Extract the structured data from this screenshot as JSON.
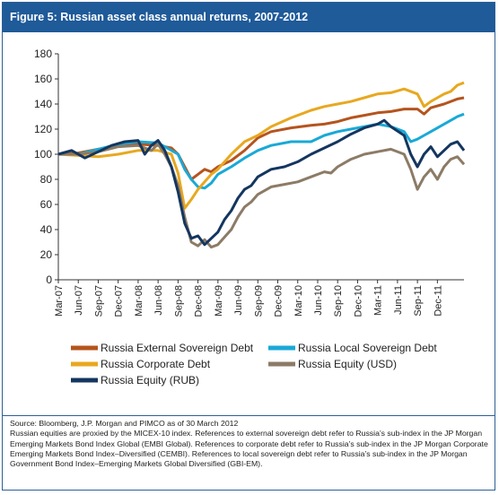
{
  "figure": {
    "title": "Figure 5: Russian asset class annual returns, 2007-2012"
  },
  "notes": {
    "source": "Source: Bloomberg, J.P. Morgan and PIMCO as of 30 March 2012",
    "body": "Russian equities are proxied by the MICEX-10 index. References to external sovereign debt refer to Russia’s sub-index in the JP Morgan Emerging Markets Bond Index Global (EMBI Global). References to corporate debt refer to Russia’s sub-index in the JP Morgan Corporate Emerging Markets Bond Index–Diversified (CEMBI). References to local sovereign debt refer to Russia’s sub-index in the JP Morgan Government Bond Index–Emerging Markets Global Diversified (GBI-EM)."
  },
  "chart_data": {
    "type": "line",
    "title": "Figure 5: Russian asset class annual returns, 2007-2012",
    "xlabel": "",
    "ylabel": "",
    "ylim": [
      0,
      180
    ],
    "yticks": [
      0,
      20,
      40,
      60,
      80,
      100,
      120,
      140,
      160,
      180
    ],
    "grid": false,
    "legend_position": "bottom",
    "x_tick_labels": [
      "Mar-07",
      "Jun-07",
      "Sep-07",
      "Dec-07",
      "Mar-08",
      "Jun-08",
      "Sep-08",
      "Dec-08",
      "Mar-09",
      "Jun-09",
      "Sep-09",
      "Dec-09",
      "Mar-10",
      "Jun-10",
      "Sep-10",
      "Dec-10",
      "Mar-11",
      "Jun-11",
      "Sep-11",
      "Dec-11"
    ],
    "x_range_months": [
      0,
      61
    ],
    "series": [
      {
        "name": "Russia External Sovereign Debt",
        "color": "#b5541e",
        "points": [
          [
            0,
            100
          ],
          [
            3,
            101
          ],
          [
            6,
            104
          ],
          [
            9,
            107
          ],
          [
            12,
            108
          ],
          [
            15,
            107
          ],
          [
            17,
            105
          ],
          [
            18,
            100
          ],
          [
            19,
            90
          ],
          [
            20,
            80
          ],
          [
            21,
            84
          ],
          [
            22,
            88
          ],
          [
            23,
            86
          ],
          [
            24,
            90
          ],
          [
            26,
            95
          ],
          [
            28,
            103
          ],
          [
            30,
            113
          ],
          [
            32,
            118
          ],
          [
            35,
            121
          ],
          [
            38,
            123
          ],
          [
            40,
            124
          ],
          [
            42,
            126
          ],
          [
            44,
            129
          ],
          [
            46,
            131
          ],
          [
            48,
            133
          ],
          [
            50,
            134
          ],
          [
            52,
            136
          ],
          [
            54,
            136
          ],
          [
            55,
            132
          ],
          [
            56,
            137
          ],
          [
            58,
            140
          ],
          [
            60,
            144
          ],
          [
            61,
            145
          ]
        ]
      },
      {
        "name": "Russia Local Sovereign Debt",
        "color": "#1aa9d6",
        "points": [
          [
            0,
            100
          ],
          [
            3,
            100
          ],
          [
            6,
            104
          ],
          [
            9,
            108
          ],
          [
            12,
            110
          ],
          [
            15,
            109
          ],
          [
            16,
            106
          ],
          [
            18,
            100
          ],
          [
            19,
            88
          ],
          [
            20,
            80
          ],
          [
            21,
            74
          ],
          [
            22,
            73
          ],
          [
            23,
            77
          ],
          [
            24,
            84
          ],
          [
            26,
            90
          ],
          [
            28,
            97
          ],
          [
            30,
            103
          ],
          [
            32,
            107
          ],
          [
            35,
            110
          ],
          [
            38,
            110
          ],
          [
            40,
            115
          ],
          [
            42,
            118
          ],
          [
            44,
            120
          ],
          [
            46,
            122
          ],
          [
            48,
            124
          ],
          [
            50,
            122
          ],
          [
            52,
            118
          ],
          [
            53,
            110
          ],
          [
            54,
            112
          ],
          [
            55,
            115
          ],
          [
            56,
            118
          ],
          [
            58,
            124
          ],
          [
            60,
            130
          ],
          [
            61,
            132
          ]
        ]
      },
      {
        "name": "Russia Corporate Debt",
        "color": "#e8a820",
        "points": [
          [
            0,
            100
          ],
          [
            3,
            99
          ],
          [
            6,
            98
          ],
          [
            9,
            100
          ],
          [
            12,
            103
          ],
          [
            15,
            103
          ],
          [
            17,
            100
          ],
          [
            18,
            85
          ],
          [
            19,
            57
          ],
          [
            20,
            64
          ],
          [
            21,
            72
          ],
          [
            22,
            78
          ],
          [
            23,
            84
          ],
          [
            24,
            88
          ],
          [
            26,
            100
          ],
          [
            28,
            110
          ],
          [
            30,
            115
          ],
          [
            32,
            122
          ],
          [
            35,
            129
          ],
          [
            38,
            135
          ],
          [
            40,
            138
          ],
          [
            42,
            140
          ],
          [
            44,
            142
          ],
          [
            46,
            145
          ],
          [
            48,
            148
          ],
          [
            50,
            149
          ],
          [
            52,
            152
          ],
          [
            54,
            148
          ],
          [
            55,
            138
          ],
          [
            56,
            142
          ],
          [
            57,
            145
          ],
          [
            58,
            148
          ],
          [
            59,
            150
          ],
          [
            60,
            155
          ],
          [
            61,
            157
          ]
        ]
      },
      {
        "name": "Russia Equity (USD)",
        "color": "#8c7b66",
        "points": [
          [
            0,
            100
          ],
          [
            3,
            100
          ],
          [
            6,
            102
          ],
          [
            9,
            106
          ],
          [
            12,
            107
          ],
          [
            14,
            103
          ],
          [
            15,
            108
          ],
          [
            16,
            100
          ],
          [
            17,
            90
          ],
          [
            18,
            75
          ],
          [
            19,
            50
          ],
          [
            20,
            30
          ],
          [
            21,
            27
          ],
          [
            22,
            32
          ],
          [
            23,
            26
          ],
          [
            24,
            28
          ],
          [
            25,
            34
          ],
          [
            26,
            40
          ],
          [
            27,
            50
          ],
          [
            28,
            58
          ],
          [
            29,
            62
          ],
          [
            30,
            68
          ],
          [
            32,
            74
          ],
          [
            34,
            76
          ],
          [
            36,
            78
          ],
          [
            38,
            82
          ],
          [
            40,
            86
          ],
          [
            41,
            85
          ],
          [
            42,
            90
          ],
          [
            44,
            96
          ],
          [
            46,
            100
          ],
          [
            48,
            102
          ],
          [
            50,
            104
          ],
          [
            52,
            100
          ],
          [
            53,
            88
          ],
          [
            54,
            72
          ],
          [
            55,
            82
          ],
          [
            56,
            88
          ],
          [
            57,
            80
          ],
          [
            58,
            90
          ],
          [
            59,
            96
          ],
          [
            60,
            98
          ],
          [
            61,
            92
          ]
        ]
      },
      {
        "name": "Russia Equity (RUB)",
        "color": "#14365f",
        "points": [
          [
            0,
            100
          ],
          [
            2,
            103
          ],
          [
            4,
            97
          ],
          [
            6,
            102
          ],
          [
            8,
            107
          ],
          [
            10,
            110
          ],
          [
            12,
            111
          ],
          [
            13,
            100
          ],
          [
            14,
            107
          ],
          [
            15,
            111
          ],
          [
            16,
            103
          ],
          [
            17,
            90
          ],
          [
            18,
            70
          ],
          [
            19,
            45
          ],
          [
            20,
            33
          ],
          [
            21,
            35
          ],
          [
            22,
            28
          ],
          [
            23,
            33
          ],
          [
            24,
            38
          ],
          [
            25,
            48
          ],
          [
            26,
            55
          ],
          [
            27,
            65
          ],
          [
            28,
            72
          ],
          [
            29,
            75
          ],
          [
            30,
            82
          ],
          [
            32,
            88
          ],
          [
            34,
            90
          ],
          [
            36,
            94
          ],
          [
            38,
            100
          ],
          [
            40,
            105
          ],
          [
            42,
            110
          ],
          [
            44,
            116
          ],
          [
            46,
            121
          ],
          [
            48,
            124
          ],
          [
            49,
            127
          ],
          [
            50,
            122
          ],
          [
            52,
            115
          ],
          [
            53,
            100
          ],
          [
            54,
            90
          ],
          [
            55,
            100
          ],
          [
            56,
            106
          ],
          [
            57,
            98
          ],
          [
            58,
            103
          ],
          [
            59,
            108
          ],
          [
            60,
            110
          ],
          [
            61,
            103
          ]
        ]
      }
    ]
  }
}
